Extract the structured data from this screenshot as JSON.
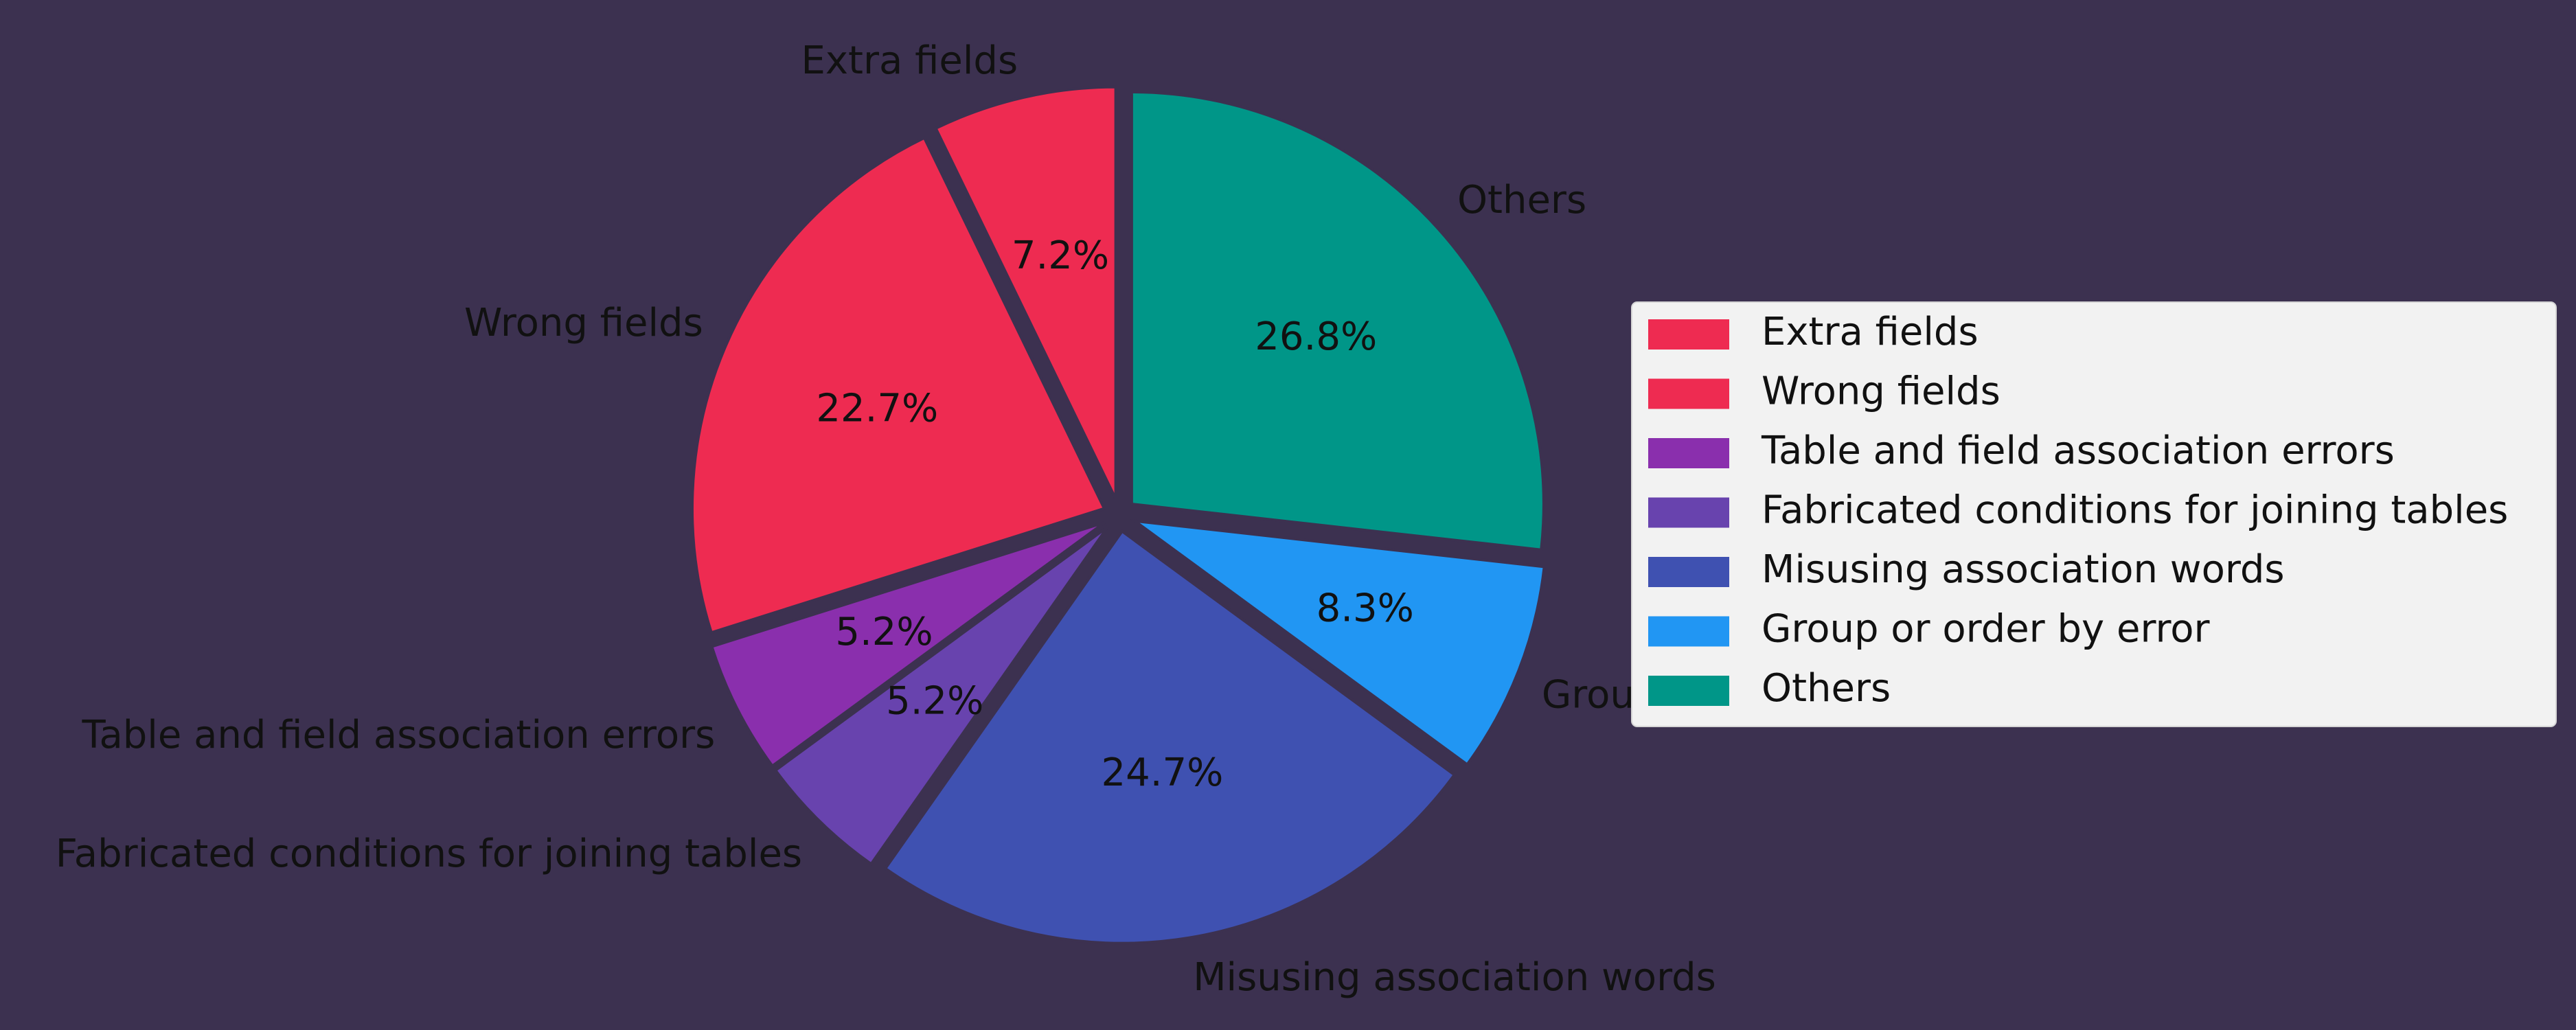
{
  "chart_data": {
    "type": "pie",
    "title": "",
    "start_angle_deg": 90,
    "direction": "counterclockwise",
    "legend_placement": "right",
    "slices": [
      {
        "label": "Extra fields",
        "value": 7.2,
        "pct_label": "7.2%",
        "color": "#ee2b51"
      },
      {
        "label": "Wrong fields",
        "value": 22.7,
        "pct_label": "22.7%",
        "color": "#ee2b51"
      },
      {
        "label": "Table and field association errors",
        "value": 5.2,
        "pct_label": "5.2%",
        "color": "#8a2fad"
      },
      {
        "label": "Fabricated conditions for joining tables",
        "value": 5.2,
        "pct_label": "5.2%",
        "color": "#6843ae"
      },
      {
        "label": "Misusing association words",
        "value": 24.7,
        "pct_label": "24.7%",
        "color": "#3f51b1"
      },
      {
        "label": "Group or order by error",
        "value": 8.3,
        "pct_label": "8.3%",
        "color": "#2196f3"
      },
      {
        "label": "Others",
        "value": 26.8,
        "pct_label": "26.8%",
        "color": "#009688"
      }
    ]
  }
}
